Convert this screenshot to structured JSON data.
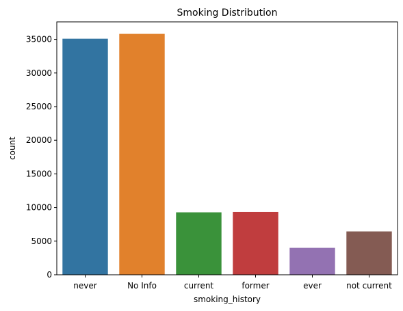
{
  "chart_data": {
    "type": "bar",
    "title": "Smoking Distribution",
    "xlabel": "smoking_history",
    "ylabel": "count",
    "categories": [
      "never",
      "No Info",
      "current",
      "former",
      "ever",
      "not current"
    ],
    "values": [
      35095,
      35816,
      9286,
      9352,
      4004,
      6447
    ],
    "colors": [
      "#3274a1",
      "#e1812c",
      "#3a923a",
      "#c03d3e",
      "#9372b2",
      "#845b53"
    ],
    "ylim": [
      0,
      37600
    ],
    "yticks": [
      0,
      5000,
      10000,
      15000,
      20000,
      25000,
      30000,
      35000
    ],
    "grid": false
  }
}
